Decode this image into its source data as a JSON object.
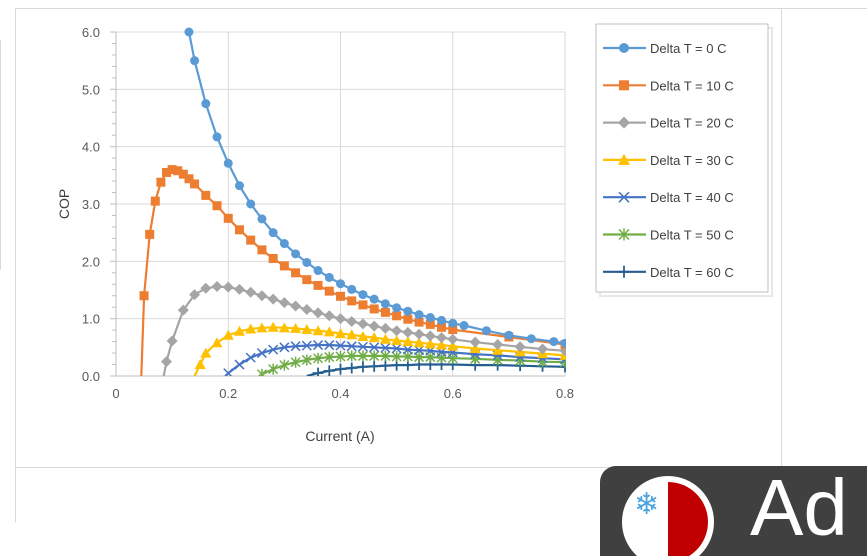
{
  "chart_data": {
    "type": "line",
    "title": "",
    "xlabel": "Current (A)",
    "ylabel": "COP",
    "xlim": [
      0,
      0.8
    ],
    "ylim": [
      0,
      6
    ],
    "x_ticks": [
      "0",
      "0.2",
      "0.4",
      "0.6",
      "0.8"
    ],
    "y_ticks": [
      "0.0",
      "1.0",
      "2.0",
      "3.0",
      "4.0",
      "5.0",
      "6.0"
    ],
    "grid": "vertical and horizontal major",
    "legend_position": "right",
    "series": [
      {
        "name": "Delta T = 0 C",
        "color": "#5b9bd5",
        "marker": "circle",
        "x": [
          0.13,
          0.14,
          0.16,
          0.18,
          0.2,
          0.22,
          0.24,
          0.26,
          0.28,
          0.3,
          0.32,
          0.34,
          0.36,
          0.38,
          0.4,
          0.42,
          0.44,
          0.46,
          0.48,
          0.5,
          0.52,
          0.54,
          0.56,
          0.58,
          0.6,
          0.62,
          0.66,
          0.7,
          0.74,
          0.78,
          0.8
        ],
        "y": [
          6.0,
          5.5,
          4.75,
          4.17,
          3.71,
          3.32,
          3.0,
          2.74,
          2.5,
          2.31,
          2.13,
          1.98,
          1.84,
          1.72,
          1.61,
          1.51,
          1.42,
          1.34,
          1.26,
          1.19,
          1.13,
          1.07,
          1.02,
          0.97,
          0.92,
          0.88,
          0.79,
          0.71,
          0.65,
          0.6,
          0.57
        ]
      },
      {
        "name": "Delta T = 10 C",
        "color": "#ed7d31",
        "marker": "square",
        "x": [
          0.045,
          0.05,
          0.06,
          0.07,
          0.08,
          0.09,
          0.1,
          0.11,
          0.12,
          0.13,
          0.14,
          0.16,
          0.18,
          0.2,
          0.22,
          0.24,
          0.26,
          0.28,
          0.3,
          0.32,
          0.34,
          0.36,
          0.38,
          0.4,
          0.42,
          0.44,
          0.46,
          0.48,
          0.5,
          0.52,
          0.54,
          0.56,
          0.58,
          0.6,
          0.7,
          0.8
        ],
        "y": [
          0.0,
          1.4,
          2.47,
          3.05,
          3.38,
          3.55,
          3.6,
          3.58,
          3.52,
          3.44,
          3.35,
          3.15,
          2.97,
          2.75,
          2.55,
          2.37,
          2.2,
          2.05,
          1.92,
          1.8,
          1.68,
          1.58,
          1.48,
          1.39,
          1.31,
          1.24,
          1.17,
          1.11,
          1.05,
          0.99,
          0.94,
          0.9,
          0.85,
          0.81,
          0.68,
          0.55
        ]
      },
      {
        "name": "Delta T = 20 C",
        "color": "#a5a5a5",
        "marker": "diamond",
        "x": [
          0.085,
          0.09,
          0.1,
          0.12,
          0.14,
          0.16,
          0.18,
          0.2,
          0.22,
          0.24,
          0.26,
          0.28,
          0.3,
          0.32,
          0.34,
          0.36,
          0.38,
          0.4,
          0.42,
          0.44,
          0.46,
          0.48,
          0.5,
          0.52,
          0.54,
          0.56,
          0.58,
          0.6,
          0.64,
          0.68,
          0.72,
          0.76,
          0.8
        ],
        "y": [
          0.0,
          0.25,
          0.61,
          1.15,
          1.42,
          1.53,
          1.56,
          1.55,
          1.51,
          1.46,
          1.4,
          1.34,
          1.28,
          1.22,
          1.16,
          1.1,
          1.05,
          1.0,
          0.95,
          0.91,
          0.87,
          0.83,
          0.79,
          0.76,
          0.73,
          0.7,
          0.67,
          0.64,
          0.59,
          0.55,
          0.51,
          0.47,
          0.44
        ]
      },
      {
        "name": "Delta T = 30 C",
        "color": "#ffc000",
        "marker": "triangle",
        "x": [
          0.14,
          0.15,
          0.16,
          0.18,
          0.2,
          0.22,
          0.24,
          0.26,
          0.28,
          0.3,
          0.32,
          0.34,
          0.36,
          0.38,
          0.4,
          0.42,
          0.44,
          0.46,
          0.48,
          0.5,
          0.52,
          0.54,
          0.56,
          0.58,
          0.6,
          0.64,
          0.68,
          0.72,
          0.76,
          0.8
        ],
        "y": [
          0.0,
          0.2,
          0.4,
          0.58,
          0.71,
          0.78,
          0.82,
          0.84,
          0.85,
          0.84,
          0.83,
          0.81,
          0.79,
          0.77,
          0.74,
          0.72,
          0.69,
          0.67,
          0.64,
          0.62,
          0.6,
          0.58,
          0.56,
          0.54,
          0.52,
          0.48,
          0.45,
          0.42,
          0.39,
          0.36
        ]
      },
      {
        "name": "Delta T = 40 C",
        "color": "#4472c4",
        "marker": "x",
        "x": [
          0.195,
          0.2,
          0.22,
          0.24,
          0.26,
          0.28,
          0.3,
          0.32,
          0.34,
          0.36,
          0.38,
          0.4,
          0.42,
          0.44,
          0.46,
          0.48,
          0.5,
          0.52,
          0.54,
          0.56,
          0.58,
          0.6,
          0.64,
          0.68,
          0.72,
          0.76,
          0.8
        ],
        "y": [
          0.0,
          0.05,
          0.2,
          0.32,
          0.4,
          0.46,
          0.5,
          0.52,
          0.53,
          0.54,
          0.54,
          0.53,
          0.52,
          0.51,
          0.5,
          0.49,
          0.48,
          0.46,
          0.45,
          0.44,
          0.42,
          0.41,
          0.38,
          0.36,
          0.33,
          0.31,
          0.29
        ]
      },
      {
        "name": "Delta T = 50 C",
        "color": "#70ad47",
        "marker": "star",
        "x": [
          0.255,
          0.26,
          0.28,
          0.3,
          0.32,
          0.34,
          0.36,
          0.38,
          0.4,
          0.42,
          0.44,
          0.46,
          0.48,
          0.5,
          0.52,
          0.54,
          0.56,
          0.58,
          0.6,
          0.64,
          0.68,
          0.72,
          0.76,
          0.8
        ],
        "y": [
          0.0,
          0.03,
          0.12,
          0.19,
          0.24,
          0.28,
          0.31,
          0.33,
          0.34,
          0.35,
          0.35,
          0.35,
          0.35,
          0.34,
          0.34,
          0.33,
          0.33,
          0.32,
          0.31,
          0.3,
          0.28,
          0.27,
          0.25,
          0.24
        ]
      },
      {
        "name": "Delta T = 60 C",
        "color": "#255e91",
        "marker": "plus",
        "x": [
          0.34,
          0.36,
          0.38,
          0.4,
          0.42,
          0.44,
          0.46,
          0.48,
          0.5,
          0.52,
          0.54,
          0.56,
          0.58,
          0.6,
          0.64,
          0.68,
          0.72,
          0.76,
          0.8
        ],
        "y": [
          0.0,
          0.05,
          0.09,
          0.12,
          0.14,
          0.16,
          0.17,
          0.18,
          0.19,
          0.19,
          0.2,
          0.2,
          0.2,
          0.2,
          0.19,
          0.19,
          0.18,
          0.17,
          0.16
        ]
      }
    ]
  },
  "logo": {
    "text": "Ad",
    "snow": "❄"
  }
}
